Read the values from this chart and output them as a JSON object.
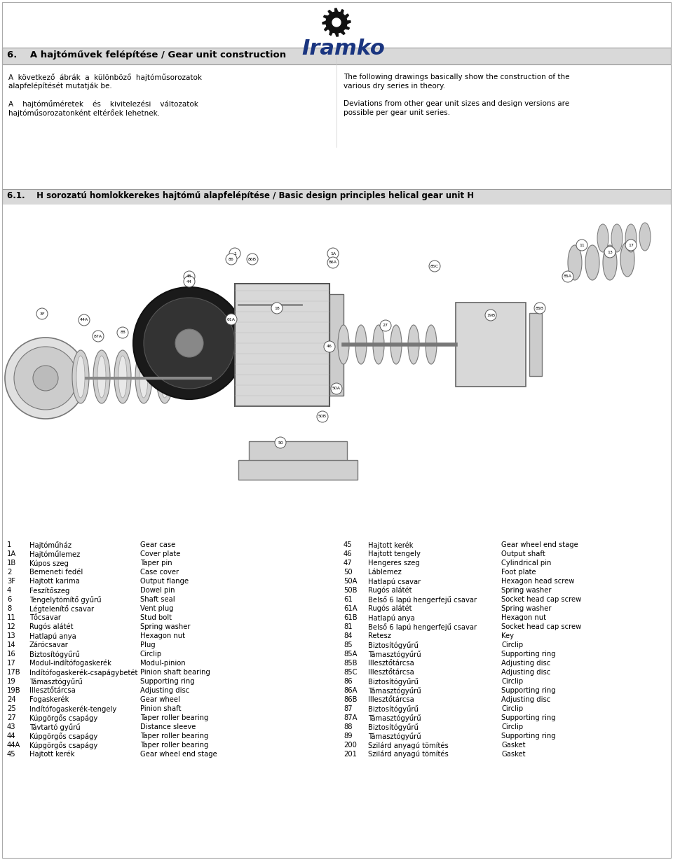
{
  "bg_color": "#ffffff",
  "header_bg": "#d9d9d9",
  "section6_title": "6.    A hajtóművek felépítése / Gear unit construction",
  "section61_title": "6.1.    H sorozatú homlokkerekes hajtómű alapfelépítése / Basic design principles helical gear unit H",
  "left_col1_line1": "A  következő  ábrák  a  különböző  hajtóműsorozatok",
  "left_col1_line2": "alapfelépítését mutatják be.",
  "left_col2_line1": "A    hajtóműméretek    és    kivitelezési    változatok",
  "left_col2_line2": "hajtóműsorozatonként eltérőek lehetnek.",
  "right_col1_line1": "The following drawings basically show the construction of the",
  "right_col1_line2": "various dry series in theory.",
  "right_col2_line1": "Deviations from other gear unit sizes and design versions are",
  "right_col2_line2": "possible per gear unit series.",
  "parts": [
    [
      "1",
      "Hajtóműház",
      "Gear case",
      "45",
      "Hajtott kerék",
      "Gear wheel end stage"
    ],
    [
      "1A",
      "Hajtóműlemez",
      "Cover plate",
      "46",
      "Hajtott tengely",
      "Output shaft"
    ],
    [
      "1B",
      "Kúpos szeg",
      "Taper pin",
      "47",
      "Hengeres szeg",
      "Cylindrical pin"
    ],
    [
      "2",
      "Bemeneti fedél",
      "Case cover",
      "50",
      "Láblemez",
      "Foot plate"
    ],
    [
      "3F",
      "Hajtott karima",
      "Output flange",
      "50A",
      "Hatlapú csavar",
      "Hexagon head screw"
    ],
    [
      "4",
      "Feszítőszeg",
      "Dowel pin",
      "50B",
      "Rugós alátét",
      "Spring washer"
    ],
    [
      "6",
      "Tengelytömítő gyűrű",
      "Shaft seal",
      "61",
      "Belső 6 lapú hengerfejű csavar",
      "Socket head cap screw"
    ],
    [
      "8",
      "Légtelenítő csavar",
      "Vent plug",
      "61A",
      "Rugós alátét",
      "Spring washer"
    ],
    [
      "11",
      "Tőcsavar",
      "Stud bolt",
      "61B",
      "Hatlapú anya",
      "Hexagon nut"
    ],
    [
      "12",
      "Rugós alátét",
      "Spring washer",
      "81",
      "Belső 6 lapú hengerfejű csavar",
      "Socket head cap screw"
    ],
    [
      "13",
      "Hatlapú anya",
      "Hexagon nut",
      "84",
      "Retesz",
      "Key"
    ],
    [
      "14",
      "Zárócsavar",
      "Plug",
      "85",
      "Biztosítógyűrű",
      "Circlip"
    ],
    [
      "16",
      "Biztosítógyűrű",
      "Circlip",
      "85A",
      "Támasztógyűrű",
      "Supporting ring"
    ],
    [
      "17",
      "Modul-indítófogaskerék",
      "Modul-pinion",
      "85B",
      "Illesztőtárcsa",
      "Adjusting disc"
    ],
    [
      "17B",
      "Indítófogaskerék-csapágybetét",
      "Pinion shaft bearing",
      "85C",
      "Illesztőtárcsa",
      "Adjusting disc"
    ],
    [
      "19",
      "Támasztógyűrű",
      "Supporting ring",
      "86",
      "Biztosítógyűrű",
      "Circlip"
    ],
    [
      "19B",
      "Illesztőtárcsa",
      "Adjusting disc",
      "86A",
      "Támasztógyűrű",
      "Supporting ring"
    ],
    [
      "24",
      "Fogaskerék",
      "Gear wheel",
      "86B",
      "Illesztőtárcsa",
      "Adjusting disc"
    ],
    [
      "25",
      "Indítófogaskerék-tengely",
      "Pinion shaft",
      "87",
      "Biztosítógyűrű",
      "Circlip"
    ],
    [
      "27",
      "Kúpgörgős csapágy",
      "Taper roller bearing",
      "87A",
      "Támasztógyűrű",
      "Supporting ring"
    ],
    [
      "43",
      "Távtartó gyűrű",
      "Distance sleeve",
      "88",
      "Biztosítógyűrű",
      "Circlip"
    ],
    [
      "44",
      "Kúpgörgős csapágy",
      "Taper roller bearing",
      "89",
      "Támasztógyűrű",
      "Supporting ring"
    ],
    [
      "44A",
      "Kúpgörgős csapágy",
      "Taper roller bearing",
      "200",
      "Szilárd anyagú tömítés",
      "Gasket"
    ],
    [
      "45",
      "Hajtott kerék",
      "Gear wheel end stage",
      "201",
      "Szilárd anyagú tömítés",
      "Gasket"
    ]
  ],
  "font_size_body": 7.5,
  "font_size_header": 9.5,
  "font_size_section": 8.5,
  "font_size_table": 7.2
}
